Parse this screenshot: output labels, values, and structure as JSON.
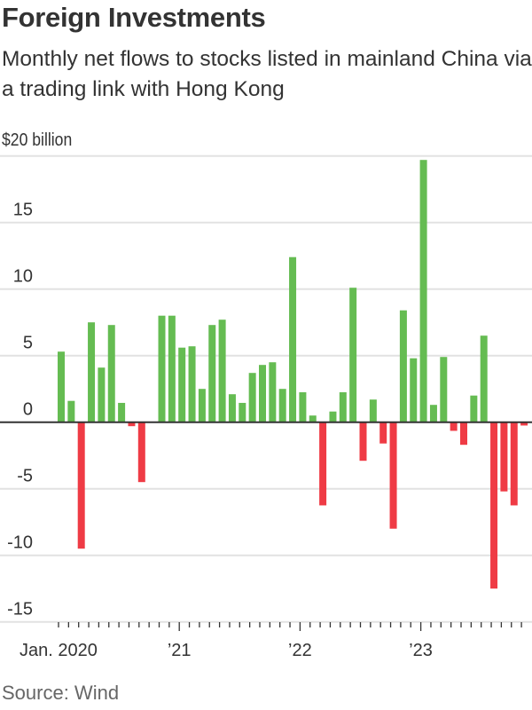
{
  "title": "Foreign Investments",
  "subtitle": "Monthly net flows to stocks listed in mainland China via a trading link with Hong Kong",
  "source": "Source: Wind",
  "chart_data": {
    "type": "bar",
    "unit_label": "$20 billion",
    "ylim": [
      -15,
      20
    ],
    "yticks": [
      20,
      15,
      10,
      5,
      0,
      -5,
      -10,
      -15
    ],
    "ytick_labels": [
      "",
      "15",
      "10",
      "5",
      "0",
      "-5",
      "-10",
      "-15"
    ],
    "xtick_labels": [
      {
        "month": "2020-01",
        "label": "Jan. 2020"
      },
      {
        "month": "2021-01",
        "label": "’21"
      },
      {
        "month": "2022-01",
        "label": "’22"
      },
      {
        "month": "2023-01",
        "label": "’23"
      }
    ],
    "grid": true,
    "colors": {
      "positive": "#65bc52",
      "negative": "#ef3b45",
      "grid": "#e2e2e2",
      "zero": "#333333"
    },
    "categories": [
      "2020-01",
      "2020-02",
      "2020-03",
      "2020-04",
      "2020-05",
      "2020-06",
      "2020-07",
      "2020-08",
      "2020-09",
      "2020-10",
      "2020-11",
      "2020-12",
      "2021-01",
      "2021-02",
      "2021-03",
      "2021-04",
      "2021-05",
      "2021-06",
      "2021-07",
      "2021-08",
      "2021-09",
      "2021-10",
      "2021-11",
      "2021-12",
      "2022-01",
      "2022-02",
      "2022-03",
      "2022-04",
      "2022-05",
      "2022-06",
      "2022-07",
      "2022-08",
      "2022-09",
      "2022-10",
      "2022-11",
      "2022-12",
      "2023-01",
      "2023-02",
      "2023-03",
      "2023-04",
      "2023-05",
      "2023-06",
      "2023-07",
      "2023-08",
      "2023-09",
      "2023-10",
      "2023-11"
    ],
    "values": [
      5.3,
      1.6,
      -9.5,
      7.5,
      4.1,
      7.3,
      1.45,
      -0.3,
      -4.5,
      0,
      8.0,
      8.0,
      5.6,
      5.7,
      2.5,
      7.3,
      7.7,
      2.1,
      1.45,
      3.7,
      4.3,
      4.5,
      2.5,
      12.4,
      2.25,
      0.5,
      -6.25,
      0.8,
      2.25,
      10.1,
      -2.9,
      1.7,
      -1.6,
      -8.0,
      8.4,
      4.8,
      19.7,
      1.3,
      4.9,
      -0.65,
      -1.7,
      2.0,
      6.5,
      -12.5,
      -5.2,
      -6.25,
      -0.25
    ]
  }
}
